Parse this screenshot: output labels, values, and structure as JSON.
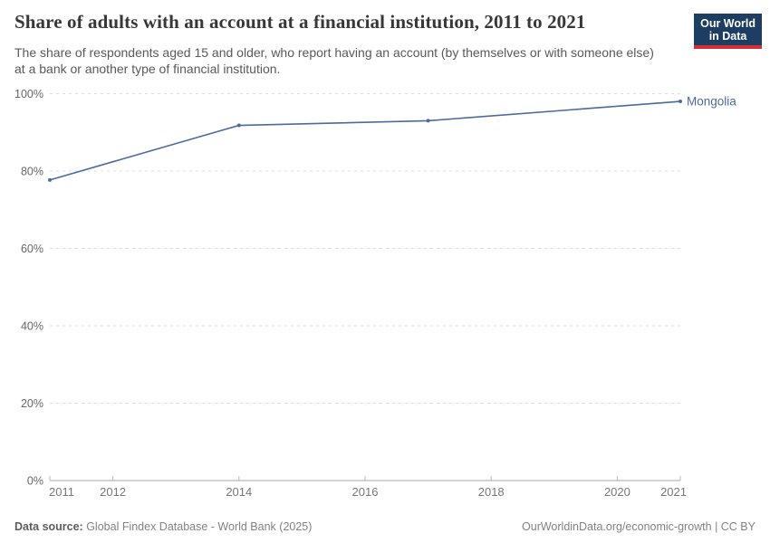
{
  "header": {
    "logo": {
      "line1": "Our World",
      "line2": "in Data",
      "bg_color": "#1d3d63",
      "accent_color": "#cf3137"
    }
  },
  "chart_data": {
    "type": "line",
    "title": "Share of adults with an account at a financial institution, 2011 to 2021",
    "subtitle": "The share of respondents aged 15 and older, who report having an account (by themselves or with someone else) at a bank or another type of financial institution.",
    "series": [
      {
        "name": "Mongolia",
        "x": [
          2011,
          2014,
          2017,
          2021
        ],
        "y": [
          77.7,
          91.8,
          93,
          98
        ]
      }
    ],
    "x_ticks": [
      2011,
      2012,
      2014,
      2016,
      2018,
      2020,
      2021
    ],
    "y_ticks": [
      0,
      20,
      40,
      60,
      80,
      100
    ],
    "y_unit": "%",
    "xlim": [
      2011,
      2021
    ],
    "ylim": [
      0,
      100
    ],
    "grid": "horizontal-dashed",
    "legend": "inline-end-label",
    "line_color": "#4c6a9c",
    "axis_color": "#a5a5a5",
    "gridline_color": "#dcdcdc",
    "tick_label_color": "#777777"
  },
  "footer": {
    "datasource_label": "Data source:",
    "datasource_value": " Global Findex Database - World Bank (2025)",
    "credit": "OurWorldinData.org/economic-growth | CC BY"
  }
}
